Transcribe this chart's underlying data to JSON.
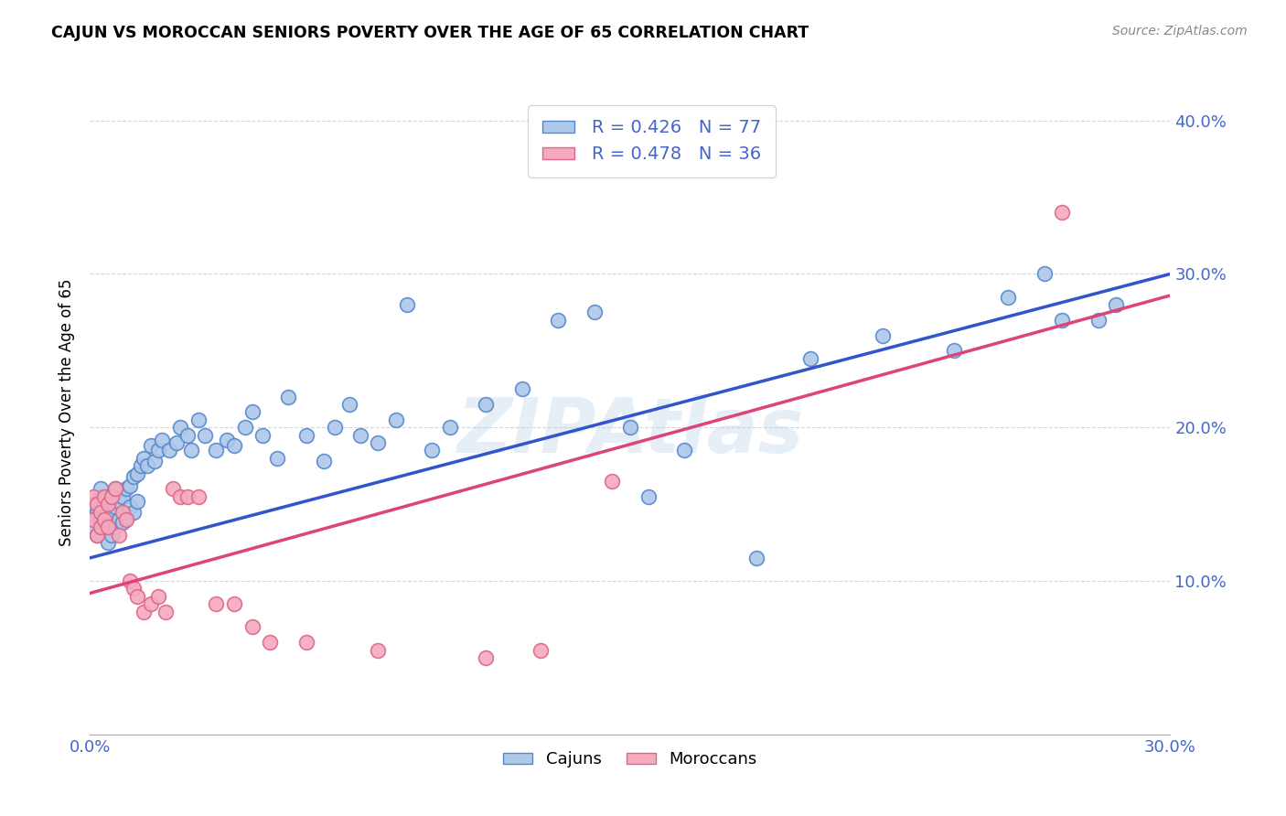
{
  "title": "CAJUN VS MOROCCAN SENIORS POVERTY OVER THE AGE OF 65 CORRELATION CHART",
  "source": "Source: ZipAtlas.com",
  "ylabel": "Seniors Poverty Over the Age of 65",
  "xlim": [
    0.0,
    0.3
  ],
  "ylim": [
    0.0,
    0.42
  ],
  "cajun_color": "#adc8e8",
  "moroccan_color": "#f5aabe",
  "cajun_edge_color": "#5588cc",
  "moroccan_edge_color": "#dd6688",
  "cajun_line_color": "#3355cc",
  "moroccan_line_color": "#dd4477",
  "cajun_R": 0.426,
  "cajun_N": 77,
  "moroccan_R": 0.478,
  "moroccan_N": 36,
  "watermark": "ZIPAtlas",
  "tick_label_color": "#4466cc",
  "cajun_x": [
    0.001,
    0.001,
    0.002,
    0.002,
    0.003,
    0.003,
    0.003,
    0.004,
    0.004,
    0.005,
    0.005,
    0.005,
    0.006,
    0.006,
    0.007,
    0.007,
    0.007,
    0.008,
    0.008,
    0.009,
    0.009,
    0.01,
    0.01,
    0.011,
    0.011,
    0.012,
    0.012,
    0.013,
    0.013,
    0.014,
    0.015,
    0.016,
    0.017,
    0.018,
    0.019,
    0.02,
    0.022,
    0.024,
    0.025,
    0.027,
    0.028,
    0.03,
    0.032,
    0.035,
    0.038,
    0.04,
    0.043,
    0.045,
    0.048,
    0.052,
    0.055,
    0.06,
    0.065,
    0.068,
    0.072,
    0.075,
    0.08,
    0.085,
    0.088,
    0.095,
    0.1,
    0.11,
    0.12,
    0.13,
    0.14,
    0.15,
    0.155,
    0.165,
    0.185,
    0.2,
    0.22,
    0.24,
    0.255,
    0.265,
    0.27,
    0.28,
    0.285
  ],
  "cajun_y": [
    0.135,
    0.15,
    0.13,
    0.145,
    0.14,
    0.155,
    0.16,
    0.135,
    0.15,
    0.125,
    0.14,
    0.155,
    0.13,
    0.145,
    0.135,
    0.148,
    0.16,
    0.14,
    0.152,
    0.138,
    0.155,
    0.142,
    0.16,
    0.148,
    0.162,
    0.145,
    0.168,
    0.152,
    0.17,
    0.175,
    0.18,
    0.175,
    0.188,
    0.178,
    0.185,
    0.192,
    0.185,
    0.19,
    0.2,
    0.195,
    0.185,
    0.205,
    0.195,
    0.185,
    0.192,
    0.188,
    0.2,
    0.21,
    0.195,
    0.18,
    0.22,
    0.195,
    0.178,
    0.2,
    0.215,
    0.195,
    0.19,
    0.205,
    0.28,
    0.185,
    0.2,
    0.215,
    0.225,
    0.27,
    0.275,
    0.2,
    0.155,
    0.185,
    0.115,
    0.245,
    0.26,
    0.25,
    0.285,
    0.3,
    0.27,
    0.27,
    0.28
  ],
  "moroccan_x": [
    0.001,
    0.001,
    0.002,
    0.002,
    0.003,
    0.003,
    0.004,
    0.004,
    0.005,
    0.005,
    0.006,
    0.007,
    0.008,
    0.009,
    0.01,
    0.011,
    0.012,
    0.013,
    0.015,
    0.017,
    0.019,
    0.021,
    0.023,
    0.025,
    0.027,
    0.03,
    0.035,
    0.04,
    0.045,
    0.05,
    0.06,
    0.08,
    0.11,
    0.125,
    0.145,
    0.27
  ],
  "moroccan_y": [
    0.14,
    0.155,
    0.13,
    0.15,
    0.135,
    0.145,
    0.14,
    0.155,
    0.135,
    0.15,
    0.155,
    0.16,
    0.13,
    0.145,
    0.14,
    0.1,
    0.095,
    0.09,
    0.08,
    0.085,
    0.09,
    0.08,
    0.16,
    0.155,
    0.155,
    0.155,
    0.085,
    0.085,
    0.07,
    0.06,
    0.06,
    0.055,
    0.05,
    0.055,
    0.165,
    0.34
  ],
  "blue_line_start_y": 0.115,
  "blue_line_end_y": 0.3,
  "pink_line_start_y": 0.092,
  "pink_line_end_y": 0.286
}
